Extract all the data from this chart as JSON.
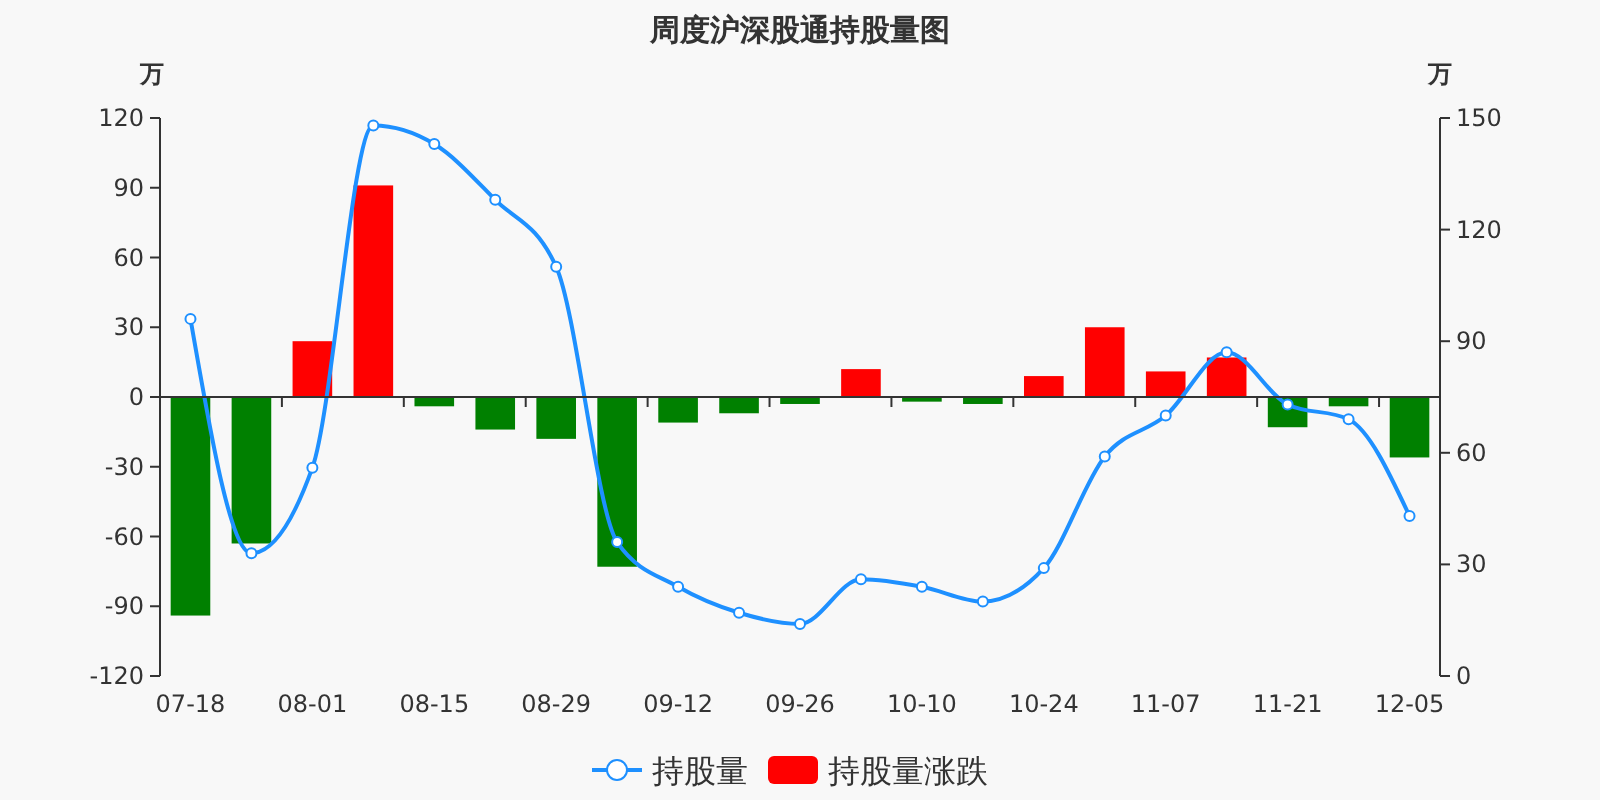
{
  "chart_data": {
    "type": "bar",
    "title": "周度沪深股通持股量图",
    "ylabel": "万",
    "y2label": "万",
    "categories": [
      "07-18",
      null,
      "08-01",
      null,
      "08-15",
      null,
      "08-29",
      null,
      "09-12",
      null,
      "09-26",
      null,
      "10-10",
      null,
      "10-24",
      null,
      "11-07",
      null,
      "11-21",
      null,
      "12-05"
    ],
    "series": [
      {
        "name": "持股量",
        "type": "line",
        "axis": "y2",
        "color": "#1e90ff",
        "marker": "circle",
        "values": [
          96,
          33,
          56,
          148,
          143,
          128,
          110,
          36,
          24,
          17,
          14,
          26,
          24,
          20,
          29,
          59,
          70,
          87,
          73,
          69,
          43
        ]
      },
      {
        "name": "持股量涨跌",
        "color": "#ff0000",
        "colors": [
          "#008000",
          "#008000",
          "#ff0000",
          "#ff0000",
          "#008000",
          "#008000",
          "#008000",
          "#008000",
          "#008000",
          "#008000",
          "#008000",
          "#ff0000",
          "#008000",
          "#008000",
          "#ff0000",
          "#ff0000",
          "#ff0000",
          "#ff0000",
          "#008000",
          "#008000",
          "#008000"
        ],
        "values": [
          -94,
          -63,
          24,
          91,
          -4,
          -14,
          -18,
          -73,
          -11,
          -7,
          -3,
          12,
          -2,
          -3,
          9,
          30,
          11,
          17,
          -13,
          -4,
          -26
        ]
      }
    ],
    "ylim": [
      -120,
      120
    ],
    "yticks": [
      -120,
      -90,
      -60,
      -30,
      0,
      30,
      60,
      90,
      120
    ],
    "y2lim": [
      0,
      150
    ],
    "y2ticks": [
      0,
      30,
      60,
      90,
      120,
      150
    ],
    "legend": "bottom"
  }
}
